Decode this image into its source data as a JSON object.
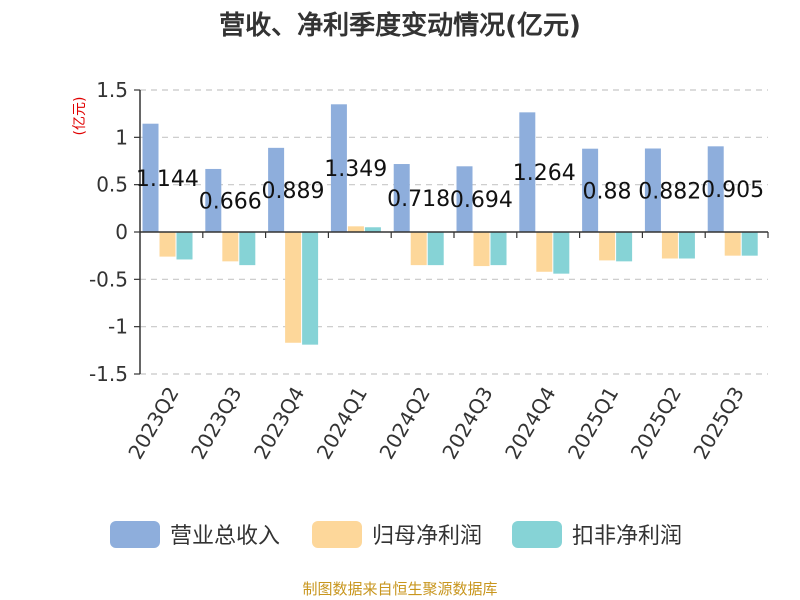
{
  "chart_data": {
    "type": "bar",
    "title": "营收、净利季度变动情况(亿元)",
    "ylabel": "(亿元)",
    "ylim": [
      -1.5,
      1.5
    ],
    "yticks": [
      1.5,
      1,
      0.5,
      0,
      -0.5,
      -1,
      -1.5
    ],
    "ytick_labels": [
      "1.5",
      "1",
      "0.5",
      "0",
      "-0.5",
      "-1",
      "-1.5"
    ],
    "grid": true,
    "legend_position": "bottom",
    "categories": [
      "2023Q2",
      "2023Q3",
      "2023Q4",
      "2024Q1",
      "2024Q2",
      "2024Q3",
      "2024Q4",
      "2025Q1",
      "2025Q2",
      "2025Q3"
    ],
    "series": [
      {
        "name": "营业总收入",
        "color": "#8eaedc",
        "values": [
          1.144,
          0.666,
          0.889,
          1.349,
          0.718,
          0.694,
          1.264,
          0.88,
          0.882,
          0.905
        ],
        "data_labels": [
          "1.144",
          "0.666",
          "0.889",
          "1.349",
          "0.718",
          "0.694",
          "1.264",
          "0.88",
          "0.882",
          "0.905"
        ]
      },
      {
        "name": "归母净利润",
        "color": "#fdd79a",
        "values": [
          -0.26,
          -0.31,
          -1.17,
          0.06,
          -0.35,
          -0.36,
          -0.42,
          -0.3,
          -0.28,
          -0.25
        ]
      },
      {
        "name": "扣非净利润",
        "color": "#86d3d6",
        "values": [
          -0.29,
          -0.35,
          -1.19,
          0.05,
          -0.35,
          -0.35,
          -0.44,
          -0.31,
          -0.28,
          -0.25
        ]
      }
    ]
  },
  "source": "制图数据来自恒生聚源数据库"
}
